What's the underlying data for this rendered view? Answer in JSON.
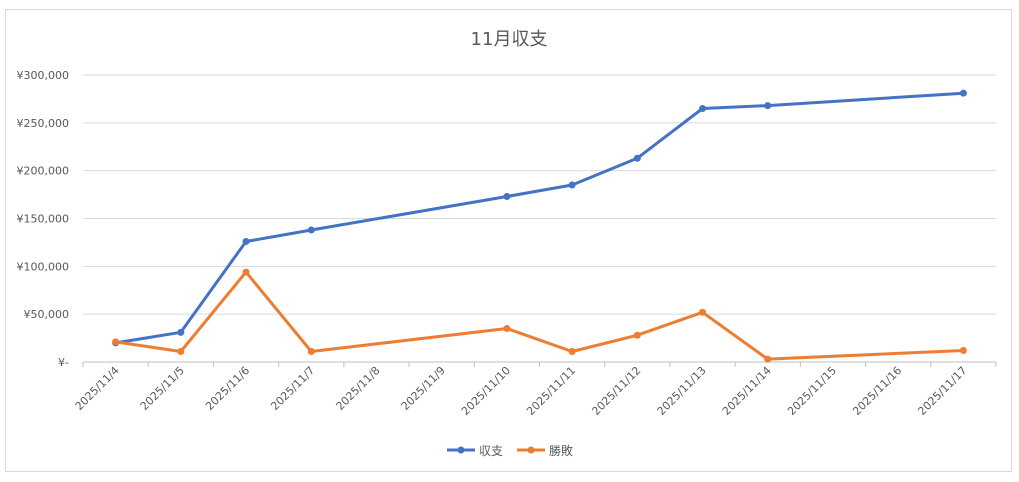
{
  "chart_data": {
    "type": "line",
    "title": "11月収支",
    "xlabel": "",
    "ylabel": "",
    "ylim": [
      0,
      300000
    ],
    "yticks": [
      0,
      50000,
      100000,
      150000,
      200000,
      250000,
      300000
    ],
    "ytick_labels": [
      "¥-",
      "¥50,000",
      "¥100,000",
      "¥150,000",
      "¥200,000",
      "¥250,000",
      "¥300,000"
    ],
    "categories": [
      "2025/11/4",
      "2025/11/5",
      "2025/11/6",
      "2025/11/7",
      "2025/11/8",
      "2025/11/9",
      "2025/11/10",
      "2025/11/11",
      "2025/11/12",
      "2025/11/13",
      "2025/11/14",
      "2025/11/15",
      "2025/11/16",
      "2025/11/17"
    ],
    "grid": true,
    "legend_position": "bottom",
    "series": [
      {
        "name": "収支",
        "color": "#4472c4",
        "values": [
          20000,
          31000,
          126000,
          138000,
          null,
          null,
          173000,
          185000,
          213000,
          265000,
          268000,
          null,
          null,
          281000
        ]
      },
      {
        "name": "勝敗",
        "color": "#ed7d31",
        "values": [
          21000,
          11000,
          94000,
          11000,
          null,
          null,
          35000,
          11000,
          28000,
          52000,
          3000,
          null,
          null,
          12000
        ]
      }
    ]
  }
}
